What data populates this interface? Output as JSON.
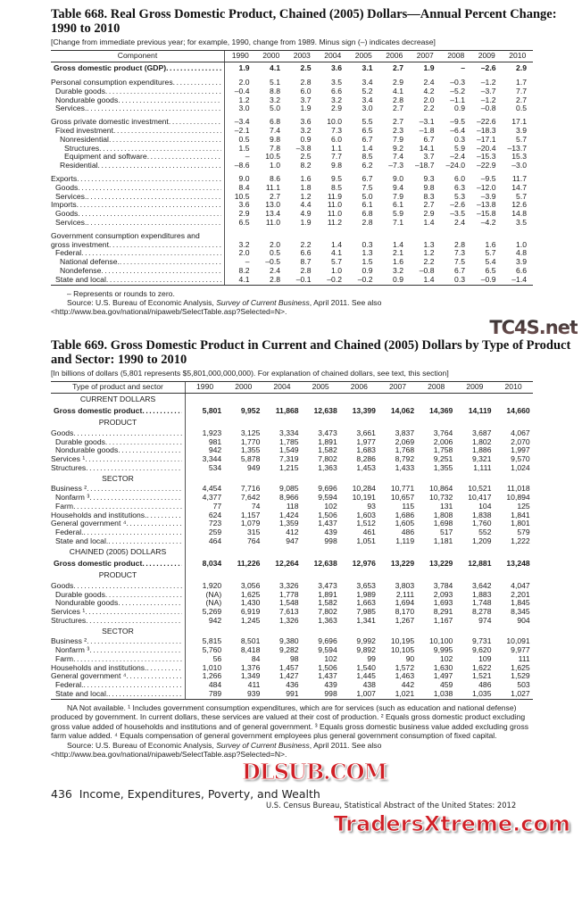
{
  "table668": {
    "title": "Table 668. Real Gross Domestic Product, Chained (2005) Dollars—Annual Percent Change: 1990 to 2010",
    "subtitle": "[Change from immediate previous year; for example, 1990, change from 1989. Minus sign (–) indicates decrease]",
    "header_label": "Component",
    "years": [
      "1990",
      "2000",
      "2003",
      "2004",
      "2005",
      "2006",
      "2007",
      "2008",
      "2009",
      "2010"
    ],
    "rows": [
      {
        "label": "Gross domestic product (GDP)",
        "level": 0,
        "bold": true,
        "values": [
          "1.9",
          "4.1",
          "2.5",
          "3.6",
          "3.1",
          "2.7",
          "1.9",
          "–",
          "–2.6",
          "2.9"
        ]
      },
      {
        "spacer": true
      },
      {
        "label": "Personal consumption expenditures",
        "level": 0,
        "values": [
          "2.0",
          "5.1",
          "2.8",
          "3.5",
          "3.4",
          "2.9",
          "2.4",
          "–0.3",
          "–1.2",
          "1.7"
        ]
      },
      {
        "label": "Durable goods",
        "level": 1,
        "values": [
          "–0.4",
          "8.8",
          "6.0",
          "6.6",
          "5.2",
          "4.1",
          "4.2",
          "–5.2",
          "–3.7",
          "7.7"
        ]
      },
      {
        "label": "Nondurable goods",
        "level": 1,
        "values": [
          "1.2",
          "3.2",
          "3.7",
          "3.2",
          "3.4",
          "2.8",
          "2.0",
          "–1.1",
          "–1.2",
          "2.7"
        ]
      },
      {
        "label": "Services.",
        "level": 1,
        "values": [
          "3.0",
          "5.0",
          "1.9",
          "2.9",
          "3.0",
          "2.7",
          "2.2",
          "0.9",
          "–0.8",
          "0.5"
        ]
      },
      {
        "spacer": true
      },
      {
        "label": "Gross private domestic investment",
        "level": 0,
        "values": [
          "–3.4",
          "6.8",
          "3.6",
          "10.0",
          "5.5",
          "2.7",
          "–3.1",
          "–9.5",
          "–22.6",
          "17.1"
        ]
      },
      {
        "label": "Fixed investment",
        "level": 1,
        "values": [
          "–2.1",
          "7.4",
          "3.2",
          "7.3",
          "6.5",
          "2.3",
          "–1.8",
          "–6.4",
          "–18.3",
          "3.9"
        ]
      },
      {
        "label": "Nonresidential",
        "level": 2,
        "values": [
          "0.5",
          "9.8",
          "0.9",
          "6.0",
          "6.7",
          "7.9",
          "6.7",
          "0.3",
          "–17.1",
          "5.7"
        ]
      },
      {
        "label": "Structures",
        "level": 3,
        "values": [
          "1.5",
          "7.8",
          "–3.8",
          "1.1",
          "1.4",
          "9.2",
          "14.1",
          "5.9",
          "–20.4",
          "–13.7"
        ]
      },
      {
        "label": "Equipment and software",
        "level": 3,
        "values": [
          "–",
          "10.5",
          "2.5",
          "7.7",
          "8.5",
          "7.4",
          "3.7",
          "–2.4",
          "–15.3",
          "15.3"
        ]
      },
      {
        "label": "Residential",
        "level": 2,
        "values": [
          "–8.6",
          "1.0",
          "8.2",
          "9.8",
          "6.2",
          "–7.3",
          "–18.7",
          "–24.0",
          "–22.9",
          "–3.0"
        ]
      },
      {
        "spacer": true
      },
      {
        "label": "Exports",
        "level": 0,
        "values": [
          "9.0",
          "8.6",
          "1.6",
          "9.5",
          "6.7",
          "9.0",
          "9.3",
          "6.0",
          "–9.5",
          "11.7"
        ]
      },
      {
        "label": "Goods",
        "level": 1,
        "values": [
          "8.4",
          "11.1",
          "1.8",
          "8.5",
          "7.5",
          "9.4",
          "9.8",
          "6.3",
          "–12.0",
          "14.7"
        ]
      },
      {
        "label": "Services.",
        "level": 1,
        "values": [
          "10.5",
          "2.7",
          "1.2",
          "11.9",
          "5.0",
          "7.9",
          "8.3",
          "5.3",
          "–3.9",
          "5.7"
        ]
      },
      {
        "label": "Imports",
        "level": 0,
        "values": [
          "3.6",
          "13.0",
          "4.4",
          "11.0",
          "6.1",
          "6.1",
          "2.7",
          "–2.6",
          "–13.8",
          "12.6"
        ]
      },
      {
        "label": "Goods",
        "level": 1,
        "values": [
          "2.9",
          "13.4",
          "4.9",
          "11.0",
          "6.8",
          "5.9",
          "2.9",
          "–3.5",
          "–15.8",
          "14.8"
        ]
      },
      {
        "label": "Services.",
        "level": 1,
        "values": [
          "6.5",
          "11.0",
          "1.9",
          "11.2",
          "2.8",
          "7.1",
          "1.4",
          "2.4",
          "–4.2",
          "3.5"
        ]
      },
      {
        "spacer": true
      },
      {
        "label": "Government consumption expenditures and",
        "level": 0,
        "nodots": true,
        "values": []
      },
      {
        "label": "gross investment",
        "level": 0,
        "values": [
          "3.2",
          "2.0",
          "2.2",
          "1.4",
          "0.3",
          "1.4",
          "1.3",
          "2.8",
          "1.6",
          "1.0"
        ]
      },
      {
        "label": "Federal",
        "level": 1,
        "values": [
          "2.0",
          "0.5",
          "6.6",
          "4.1",
          "1.3",
          "2.1",
          "1.2",
          "7.3",
          "5.7",
          "4.8"
        ]
      },
      {
        "label": "National defense.",
        "level": 2,
        "values": [
          "–",
          "–0.5",
          "8.7",
          "5.7",
          "1.5",
          "1.6",
          "2.2",
          "7.5",
          "5.4",
          "3.9"
        ]
      },
      {
        "label": "Nondefense",
        "level": 2,
        "values": [
          "8.2",
          "2.4",
          "2.8",
          "1.0",
          "0.9",
          "3.2",
          "–0.8",
          "6.7",
          "6.5",
          "6.6"
        ]
      },
      {
        "label": "State and local",
        "level": 1,
        "values": [
          "4.1",
          "2.8",
          "–0.1",
          "–0.2",
          "–0.2",
          "0.9",
          "1.4",
          "0.3",
          "–0.9",
          "–1.4"
        ]
      }
    ],
    "notes": {
      "zero": "– Represents or rounds to zero.",
      "source_prefix": "Source: U.S. Bureau of Economic Analysis, ",
      "source_italic": "Survey of Current Business",
      "source_suffix": ", April 2011. See also <http://www.bea.gov/national/nipaweb/SelectTable.asp?Selected=N>."
    }
  },
  "table669": {
    "title": "Table 669. Gross Domestic Product in Current and Chained (2005) Dollars by Type of Product and Sector: 1990 to 2010",
    "subtitle": "[In billions of dollars (5,801 represents $5,801,000,000,000). For explanation of chained dollars, see text, this section]",
    "header_label": "Type of product and sector",
    "years": [
      "1990",
      "2000",
      "2004",
      "2005",
      "2006",
      "2007",
      "2008",
      "2009",
      "2010"
    ],
    "rows": [
      {
        "label": "CURRENT DOLLARS",
        "section": true
      },
      {
        "label": "Gross domestic product",
        "level": 0,
        "bold": true,
        "values": [
          "5,801",
          "9,952",
          "11,868",
          "12,638",
          "13,399",
          "14,062",
          "14,369",
          "14,119",
          "14,660"
        ]
      },
      {
        "label": "PRODUCT",
        "section": true
      },
      {
        "label": "Goods",
        "level": 0,
        "values": [
          "1,923",
          "3,125",
          "3,334",
          "3,473",
          "3,661",
          "3,837",
          "3,764",
          "3,687",
          "4,067"
        ]
      },
      {
        "label": "Durable goods",
        "level": 1,
        "values": [
          "981",
          "1,770",
          "1,785",
          "1,891",
          "1,977",
          "2,069",
          "2,006",
          "1,802",
          "2,070"
        ]
      },
      {
        "label": "Nondurable goods",
        "level": 1,
        "values": [
          "942",
          "1,355",
          "1,549",
          "1,582",
          "1,683",
          "1,768",
          "1,758",
          "1,886",
          "1,997"
        ]
      },
      {
        "label": "Services ¹",
        "level": 0,
        "values": [
          "3,344",
          "5,878",
          "7,319",
          "7,802",
          "8,286",
          "8,792",
          "9,251",
          "9,321",
          "9,570"
        ]
      },
      {
        "label": "Structures",
        "level": 0,
        "values": [
          "534",
          "949",
          "1,215",
          "1,363",
          "1,453",
          "1,433",
          "1,355",
          "1,111",
          "1,024"
        ]
      },
      {
        "label": "SECTOR",
        "section": true
      },
      {
        "label": "Business ²",
        "level": 0,
        "values": [
          "4,454",
          "7,716",
          "9,085",
          "9,696",
          "10,284",
          "10,771",
          "10,864",
          "10,521",
          "11,018"
        ]
      },
      {
        "label": "Nonfarm ³",
        "level": 1,
        "values": [
          "4,377",
          "7,642",
          "8,966",
          "9,594",
          "10,191",
          "10,657",
          "10,732",
          "10,417",
          "10,894"
        ]
      },
      {
        "label": "Farm",
        "level": 1,
        "values": [
          "77",
          "74",
          "118",
          "102",
          "93",
          "115",
          "131",
          "104",
          "125"
        ]
      },
      {
        "label": "Households and institutions.",
        "level": 0,
        "values": [
          "624",
          "1,157",
          "1,424",
          "1,506",
          "1,603",
          "1,686",
          "1,808",
          "1,838",
          "1,841"
        ]
      },
      {
        "label": "General government ⁴",
        "level": 0,
        "values": [
          "723",
          "1,079",
          "1,359",
          "1,437",
          "1,512",
          "1,605",
          "1,698",
          "1,760",
          "1,801"
        ]
      },
      {
        "label": "Federal.",
        "level": 1,
        "values": [
          "259",
          "315",
          "412",
          "439",
          "461",
          "486",
          "517",
          "552",
          "579"
        ]
      },
      {
        "label": "State and local.",
        "level": 1,
        "values": [
          "464",
          "764",
          "947",
          "998",
          "1,051",
          "1,119",
          "1,181",
          "1,209",
          "1,222"
        ]
      },
      {
        "label": "CHAINED (2005) DOLLARS",
        "section": true
      },
      {
        "label": "Gross domestic product",
        "level": 0,
        "bold": true,
        "values": [
          "8,034",
          "11,226",
          "12,264",
          "12,638",
          "12,976",
          "13,229",
          "13,229",
          "12,881",
          "13,248"
        ]
      },
      {
        "label": "PRODUCT",
        "section": true
      },
      {
        "label": "Goods",
        "level": 0,
        "values": [
          "1,920",
          "3,056",
          "3,326",
          "3,473",
          "3,653",
          "3,803",
          "3,784",
          "3,642",
          "4,047"
        ]
      },
      {
        "label": "Durable goods",
        "level": 1,
        "values": [
          "(NA)",
          "1,625",
          "1,778",
          "1,891",
          "1,989",
          "2,111",
          "2,093",
          "1,883",
          "2,201"
        ]
      },
      {
        "label": "Nondurable goods",
        "level": 1,
        "values": [
          "(NA)",
          "1,430",
          "1,548",
          "1,582",
          "1,663",
          "1,694",
          "1,693",
          "1,748",
          "1,845"
        ]
      },
      {
        "label": "Services ¹",
        "level": 0,
        "values": [
          "5,269",
          "6,919",
          "7,613",
          "7,802",
          "7,985",
          "8,170",
          "8,291",
          "8,278",
          "8,345"
        ]
      },
      {
        "label": "Structures",
        "level": 0,
        "values": [
          "942",
          "1,245",
          "1,326",
          "1,363",
          "1,341",
          "1,267",
          "1,167",
          "974",
          "904"
        ]
      },
      {
        "label": "SECTOR",
        "section": true
      },
      {
        "label": "Business ²",
        "level": 0,
        "values": [
          "5,815",
          "8,501",
          "9,380",
          "9,696",
          "9,992",
          "10,195",
          "10,100",
          "9,731",
          "10,091"
        ]
      },
      {
        "label": "Nonfarm ³",
        "level": 1,
        "values": [
          "5,760",
          "8,418",
          "9,282",
          "9,594",
          "9,892",
          "10,105",
          "9,995",
          "9,620",
          "9,977"
        ]
      },
      {
        "label": "Farm",
        "level": 1,
        "values": [
          "56",
          "84",
          "98",
          "102",
          "99",
          "90",
          "102",
          "109",
          "111"
        ]
      },
      {
        "label": "Households and institutions.",
        "level": 0,
        "values": [
          "1,010",
          "1,376",
          "1,457",
          "1,506",
          "1,540",
          "1,572",
          "1,630",
          "1,622",
          "1,625"
        ]
      },
      {
        "label": "General government ⁴",
        "level": 0,
        "values": [
          "1,266",
          "1,349",
          "1,427",
          "1,437",
          "1,445",
          "1,463",
          "1,497",
          "1,521",
          "1,529"
        ]
      },
      {
        "label": "Federal.",
        "level": 1,
        "values": [
          "484",
          "411",
          "436",
          "439",
          "438",
          "442",
          "459",
          "486",
          "503"
        ]
      },
      {
        "label": "State and local.",
        "level": 1,
        "values": [
          "789",
          "939",
          "991",
          "998",
          "1,007",
          "1,021",
          "1,038",
          "1,035",
          "1,027"
        ]
      }
    ],
    "notes": {
      "footnotes": "NA Not available. ¹ Includes government consumption expenditures, which are for services (such as education and national defense) produced by government. In current dollars, these services are valued at their cost of production. ² Equals gross domestic product excluding gross value added of households and institutions and of general government. ³ Equals gross domestic business value added excluding gross farm value added. ⁴ Equals compensation of general government employees plus general government consumption of fixed capital.",
      "source_prefix": "Source: U.S. Bureau of Economic Analysis, ",
      "source_italic": "Survey of Current Business",
      "source_suffix": ", April 2011. See also <http://www.bea.gov/national/nipaweb/SelectTable.asp?Selected=N>."
    }
  },
  "footer": {
    "page_line": "436  Income, Expenditures, Poverty, and Wealth",
    "source_line": "U.S. Census Bureau, Statistical Abstract of the United States: 2012"
  },
  "watermarks": [
    "TC4S.net",
    "DLSUB.COM",
    "TradersXtreme.com"
  ]
}
